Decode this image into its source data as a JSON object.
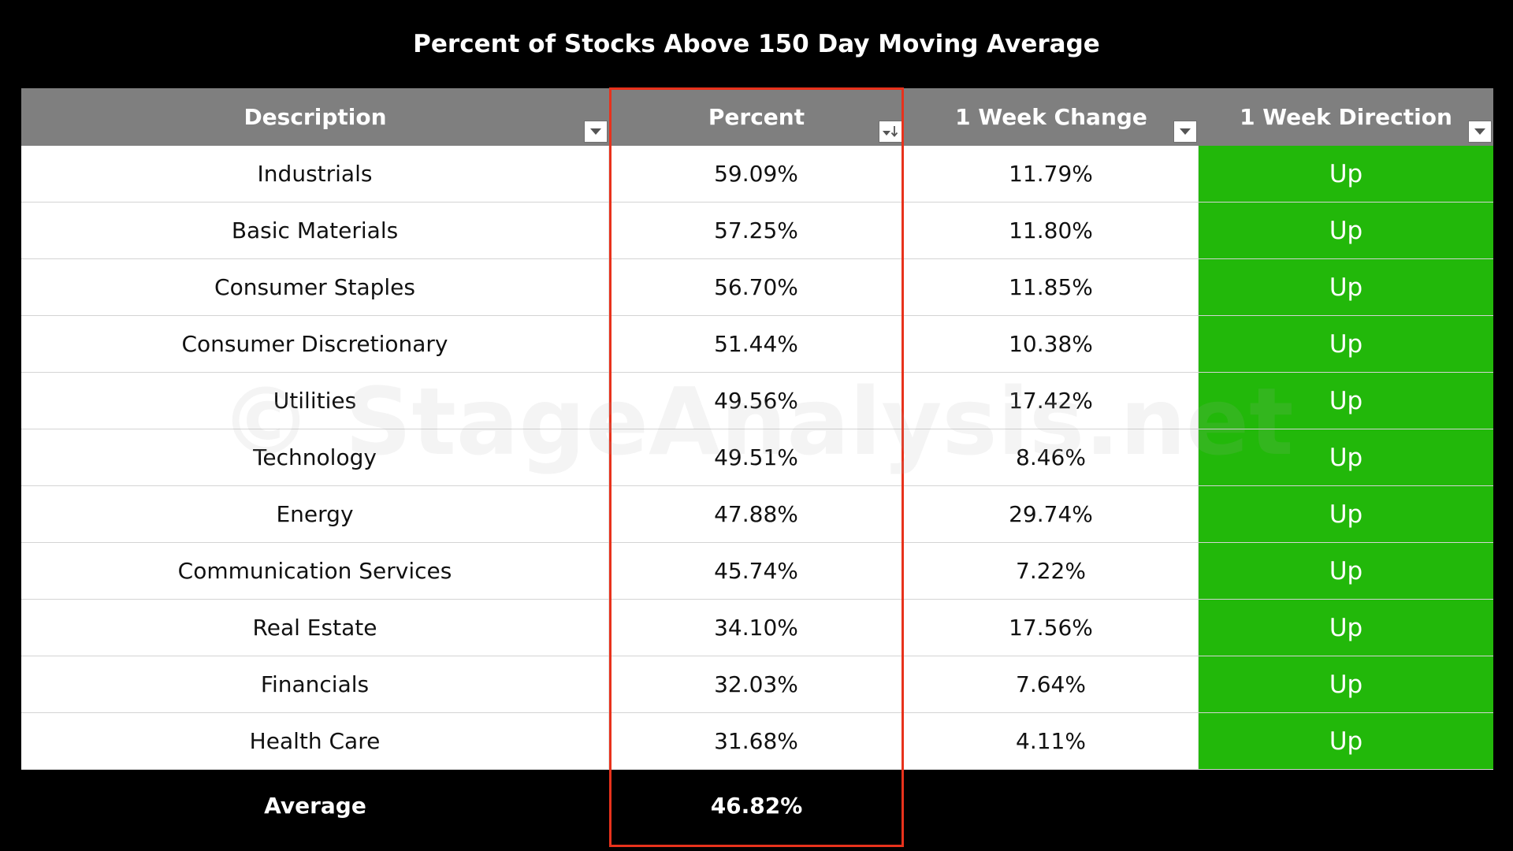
{
  "chart_data": {
    "type": "table",
    "title": "Percent of Stocks Above 150 Day Moving Average",
    "columns": [
      "Description",
      "Percent",
      "1 Week Change",
      "1 Week Direction"
    ],
    "rows": [
      {
        "description": "Industrials",
        "percent": "59.09%",
        "week_change": "11.79%",
        "direction": "Up"
      },
      {
        "description": "Basic Materials",
        "percent": "57.25%",
        "week_change": "11.80%",
        "direction": "Up"
      },
      {
        "description": "Consumer Staples",
        "percent": "56.70%",
        "week_change": "11.85%",
        "direction": "Up"
      },
      {
        "description": "Consumer Discretionary",
        "percent": "51.44%",
        "week_change": "10.38%",
        "direction": "Up"
      },
      {
        "description": "Utilities",
        "percent": "49.56%",
        "week_change": "17.42%",
        "direction": "Up"
      },
      {
        "description": "Technology",
        "percent": "49.51%",
        "week_change": "8.46%",
        "direction": "Up"
      },
      {
        "description": "Energy",
        "percent": "47.88%",
        "week_change": "29.74%",
        "direction": "Up"
      },
      {
        "description": "Communication Services",
        "percent": "45.74%",
        "week_change": "7.22%",
        "direction": "Up"
      },
      {
        "description": "Real Estate",
        "percent": "34.10%",
        "week_change": "17.56%",
        "direction": "Up"
      },
      {
        "description": "Financials",
        "percent": "32.03%",
        "week_change": "7.64%",
        "direction": "Up"
      },
      {
        "description": "Health Care",
        "percent": "31.68%",
        "week_change": "4.11%",
        "direction": "Up"
      }
    ],
    "average": {
      "label": "Average",
      "percent": "46.82%"
    },
    "sorted_column": "Percent",
    "sort_order": "descending"
  },
  "watermark": "© StageAnalysis.net",
  "colors": {
    "background": "#000000",
    "header": "#7f7f7f",
    "direction_up": "#22b80a",
    "highlight": "#e8321c"
  }
}
